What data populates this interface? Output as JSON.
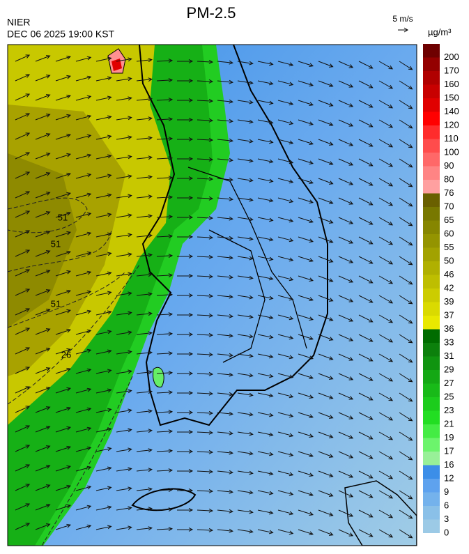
{
  "header": {
    "title": "PM-2.5",
    "agency": "NIER",
    "datetime": "DEC 06 2025 19:00 KST",
    "wind_scale": "5 m/s",
    "unit": "µg/m³"
  },
  "contour_labels": [
    "51",
    "51",
    "51",
    "26"
  ],
  "colorbar": {
    "ticks": [
      0,
      3,
      6,
      9,
      12,
      16,
      17,
      19,
      21,
      23,
      25,
      27,
      29,
      31,
      33,
      36,
      37,
      39,
      42,
      46,
      50,
      55,
      60,
      65,
      70,
      76,
      80,
      90,
      100,
      110,
      120,
      140,
      150,
      160,
      170,
      200
    ],
    "colors": [
      "#9ccae6",
      "#8ac0e8",
      "#74b2ec",
      "#5ea2ee",
      "#3c8ee8",
      "#98f098",
      "#6cf46c",
      "#44ec44",
      "#22de22",
      "#1ccc1c",
      "#18ba18",
      "#14a814",
      "#109410",
      "#0c800c",
      "#006c00",
      "#e8e800",
      "#dada00",
      "#cccc00",
      "#bebe00",
      "#b0b000",
      "#a2a200",
      "#949400",
      "#868600",
      "#787800",
      "#6a6000",
      "#ffa0a0",
      "#ff8484",
      "#ff6868",
      "#ff4c4c",
      "#ff2c2c",
      "#ff0000",
      "#e00000",
      "#c80000",
      "#b00000",
      "#940000",
      "#6e0000"
    ]
  }
}
